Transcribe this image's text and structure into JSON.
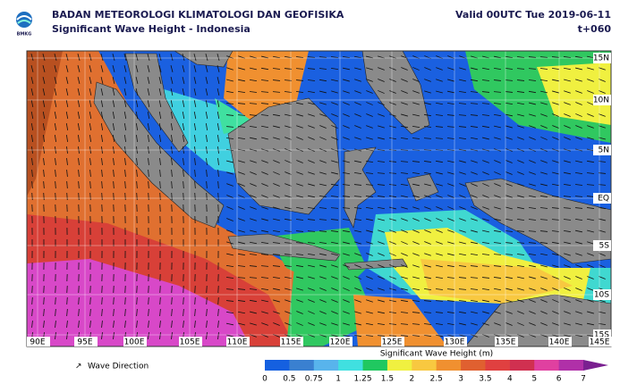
{
  "header": {
    "logo_text": "BMKG",
    "agency": "BADAN METEOROLOGI KLIMATOLOGI DAN GEOFISIKA",
    "subtitle": "Significant Wave Height - Indonesia",
    "valid": "Valid 00UTC Tue 2019-06-11",
    "lead": "t+060"
  },
  "map": {
    "lat_labels": [
      "15N",
      "10N",
      "5N",
      "EQ",
      "5S",
      "10S",
      "15S"
    ],
    "lon_labels": [
      "90E",
      "95E",
      "100E",
      "105E",
      "110E",
      "115E",
      "120E",
      "125E",
      "130E",
      "135E",
      "140E",
      "145E"
    ]
  },
  "legend": {
    "direction": "Wave Direction",
    "title": "Significant Wave Height (m)",
    "ticks": [
      0,
      0.5,
      0.75,
      1,
      1.25,
      1.5,
      2,
      2.5,
      3,
      3.5,
      4,
      5,
      6,
      7
    ],
    "colors": [
      "#1560e0",
      "#3a80d0",
      "#58b4ec",
      "#40e0e0",
      "#20c860",
      "#f0f040",
      "#f8c840",
      "#f09030",
      "#e06030",
      "#e04040",
      "#d03050",
      "#e040a0",
      "#b030a8",
      "#7a2090"
    ]
  }
}
